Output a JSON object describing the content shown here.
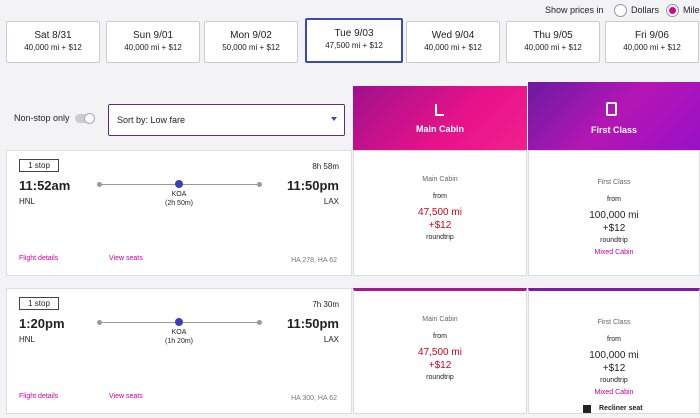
{
  "price_toggle": {
    "label": "Show prices in",
    "options": [
      "Dollars",
      "Miles"
    ]
  },
  "dates": [
    {
      "day": "Sat 8/31",
      "price": "40,000 mi + $12"
    },
    {
      "day": "Sun 9/01",
      "price": "40,000 mi + $12"
    },
    {
      "day": "Mon 9/02",
      "price": "50,000 mi + $12"
    },
    {
      "day": "Tue 9/03",
      "price": "47,500 mi + $12"
    },
    {
      "day": "Wed 9/04",
      "price": "40,000 mi + $12"
    },
    {
      "day": "Thu 9/05",
      "price": "40,000 mi + $12"
    },
    {
      "day": "Fri 9/06",
      "price": "40,000 mi + $12"
    }
  ],
  "filters": {
    "nonstop": "Non-stop only",
    "sort": "Sort by: Low fare"
  },
  "cabins": [
    "Main Cabin",
    "First Class"
  ],
  "flights": [
    {
      "stops": "1 stop",
      "duration": "8h 58m",
      "depart": "11:52am",
      "arrive": "11:50pm",
      "origin": "HNL",
      "dest": "LAX",
      "via": "KOA",
      "layover": "(2h 50m)",
      "details": "Flight details",
      "seats": "View seats",
      "flight_numbers": "HA 278, HA 62",
      "main": {
        "label": "Main Cabin",
        "from": "from",
        "miles": "47,500 mi",
        "fee": "+$12",
        "trip": "roundtrip"
      },
      "first": {
        "label": "First Class",
        "from": "from",
        "miles": "100,000 mi",
        "fee": "+$12",
        "trip": "roundtrip",
        "note": "Mixed Cabin"
      }
    },
    {
      "stops": "1 stop",
      "duration": "7h 30m",
      "depart": "1:20pm",
      "arrive": "11:50pm",
      "origin": "HNL",
      "dest": "LAX",
      "via": "KOA",
      "layover": "(1h 20m)",
      "details": "Flight details",
      "seats": "View seats",
      "flight_numbers": "HA 300, HA 62",
      "main": {
        "label": "Main Cabin",
        "from": "from",
        "miles": "47,500 mi",
        "fee": "+$12",
        "trip": "roundtrip"
      },
      "first": {
        "label": "First Class",
        "from": "from",
        "miles": "100,000 mi",
        "fee": "+$12",
        "trip": "roundtrip",
        "note": "Mixed Cabin",
        "extra": "Recliner seat"
      }
    }
  ]
}
